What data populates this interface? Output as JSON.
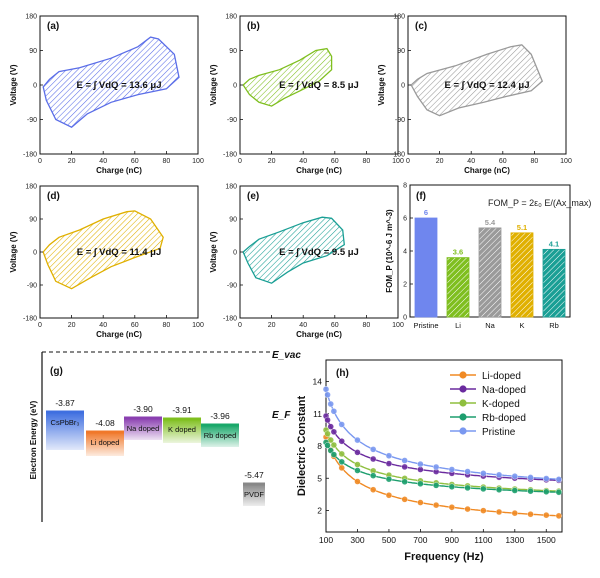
{
  "pe_loops": [
    {
      "label": "(a)",
      "dopant": "Pristine",
      "energy_text": "E = ∫ VdQ = 13.6 μJ",
      "color": "#5b6ee8",
      "xlabel": "Charge (nC)",
      "ylabel": "Voltage (V)",
      "xticks": [
        "0",
        "20",
        "40",
        "60",
        "80",
        "100"
      ],
      "yticks": [
        "180",
        "90",
        "0",
        "-90",
        "-180"
      ],
      "xlim": [
        0,
        100
      ],
      "ylim": [
        -180,
        180
      ],
      "loop": [
        [
          2,
          -5
        ],
        [
          6,
          15
        ],
        [
          12,
          35
        ],
        [
          25,
          45
        ],
        [
          45,
          70
        ],
        [
          62,
          100
        ],
        [
          70,
          125
        ],
        [
          75,
          120
        ],
        [
          85,
          80
        ],
        [
          88,
          20
        ],
        [
          80,
          -10
        ],
        [
          62,
          -25
        ],
        [
          45,
          -45
        ],
        [
          30,
          -75
        ],
        [
          20,
          -110
        ],
        [
          10,
          -90
        ],
        [
          4,
          -40
        ]
      ]
    },
    {
      "label": "(b)",
      "dopant": "Li",
      "energy_text": "E = ∫ VdQ = 8.5 μJ",
      "color": "#7fbf1f",
      "xlabel": "Charge (nC)",
      "ylabel": "Voltage (V)",
      "xticks": [
        "0",
        "20",
        "40",
        "60",
        "80",
        "100"
      ],
      "yticks": [
        "180",
        "90",
        "0",
        "-90",
        "-180"
      ],
      "xlim": [
        0,
        100
      ],
      "ylim": [
        -180,
        180
      ],
      "loop": [
        [
          2,
          0
        ],
        [
          6,
          15
        ],
        [
          12,
          25
        ],
        [
          25,
          40
        ],
        [
          38,
          65
        ],
        [
          48,
          90
        ],
        [
          55,
          95
        ],
        [
          58,
          75
        ],
        [
          58,
          40
        ],
        [
          50,
          10
        ],
        [
          38,
          -15
        ],
        [
          28,
          -35
        ],
        [
          20,
          -55
        ],
        [
          12,
          -45
        ],
        [
          6,
          -25
        ]
      ]
    },
    {
      "label": "(c)",
      "dopant": "Na",
      "energy_text": "E = ∫ VdQ = 12.4 μJ",
      "color": "#9a9a9a",
      "xlabel": "Charge (nC)",
      "ylabel": "Voltage (V)",
      "xticks": [
        "0",
        "20",
        "40",
        "60",
        "80",
        "100"
      ],
      "yticks": [
        "180",
        "90",
        "0",
        "-90",
        "-180"
      ],
      "xlim": [
        0,
        100
      ],
      "ylim": [
        -180,
        180
      ],
      "loop": [
        [
          2,
          0
        ],
        [
          6,
          15
        ],
        [
          12,
          30
        ],
        [
          30,
          50
        ],
        [
          50,
          80
        ],
        [
          65,
          100
        ],
        [
          72,
          105
        ],
        [
          78,
          80
        ],
        [
          85,
          10
        ],
        [
          78,
          -15
        ],
        [
          62,
          -30
        ],
        [
          48,
          -45
        ],
        [
          32,
          -60
        ],
        [
          20,
          -80
        ],
        [
          12,
          -65
        ],
        [
          6,
          -30
        ]
      ]
    },
    {
      "label": "(d)",
      "dopant": "K",
      "energy_text": "E = ∫ VdQ = 11.4 μJ",
      "color": "#e0b000",
      "xlabel": "Charge (nC)",
      "ylabel": "Voltage (V)",
      "xticks": [
        "0",
        "20",
        "40",
        "60",
        "80",
        "100"
      ],
      "yticks": [
        "180",
        "90",
        "0",
        "-90",
        "-180"
      ],
      "xlim": [
        0,
        100
      ],
      "ylim": [
        -180,
        180
      ],
      "loop": [
        [
          2,
          0
        ],
        [
          6,
          20
        ],
        [
          12,
          40
        ],
        [
          25,
          60
        ],
        [
          40,
          90
        ],
        [
          55,
          110
        ],
        [
          60,
          112
        ],
        [
          70,
          90
        ],
        [
          78,
          40
        ],
        [
          76,
          10
        ],
        [
          60,
          -15
        ],
        [
          45,
          -40
        ],
        [
          32,
          -70
        ],
        [
          20,
          -100
        ],
        [
          10,
          -80
        ],
        [
          5,
          -35
        ]
      ]
    },
    {
      "label": "(e)",
      "dopant": "Rb",
      "energy_text": "E = ∫ VdQ = 9.5 μJ",
      "color": "#1a9f95",
      "xlabel": "Charge (nC)",
      "ylabel": "Voltage (V)",
      "xticks": [
        "0",
        "20",
        "40",
        "60",
        "80",
        "100"
      ],
      "yticks": [
        "180",
        "90",
        "0",
        "-90",
        "-180"
      ],
      "xlim": [
        0,
        100
      ],
      "ylim": [
        -180,
        180
      ],
      "loop": [
        [
          2,
          0
        ],
        [
          6,
          15
        ],
        [
          12,
          35
        ],
        [
          25,
          55
        ],
        [
          40,
          80
        ],
        [
          52,
          95
        ],
        [
          58,
          92
        ],
        [
          65,
          60
        ],
        [
          66,
          20
        ],
        [
          55,
          -10
        ],
        [
          40,
          -30
        ],
        [
          30,
          -55
        ],
        [
          20,
          -85
        ],
        [
          10,
          -70
        ],
        [
          5,
          -30
        ]
      ]
    }
  ],
  "chart_data": [
    {
      "type": "bar",
      "label": "(f)",
      "title": "FOM_P = 2ε₀ E/(Ax_max)",
      "categories": [
        "Pristine",
        "Li",
        "Na",
        "K",
        "Rb"
      ],
      "values": [
        6,
        3.6,
        5.4,
        5.1,
        4.1
      ],
      "value_labels": [
        "6",
        "3.6",
        "5.4",
        "5.1",
        "4.1"
      ],
      "colors": [
        "#6f86ee",
        "#7fbf1f",
        "#9a9a9a",
        "#e0b000",
        "#1a9f95"
      ],
      "ylabel": "FOM_P (10^-6 J m^-3)",
      "ylim": [
        0,
        8
      ],
      "yticks": [
        "0",
        "2",
        "4",
        "6",
        "8"
      ]
    },
    {
      "type": "line",
      "label": "(h)",
      "xlabel": "Frequency (Hz)",
      "ylabel": "Dielectric Constant",
      "xlim": [
        100,
        1600
      ],
      "ylim": [
        0,
        16
      ],
      "xticks": [
        "100",
        "300",
        "500",
        "700",
        "900",
        "1100",
        "1300",
        "1500"
      ],
      "yticks": [
        "2",
        "5",
        "8",
        "11",
        "14"
      ],
      "legend": [
        "Li-doped",
        "Na-doped",
        "K-doped",
        "Rb-doped",
        "Pristine"
      ],
      "series": [
        {
          "name": "Li-doped",
          "color": "#f08a24",
          "a": 98,
          "b": 1.5
        },
        {
          "name": "Na-doped",
          "color": "#6a2a9e",
          "a": 80,
          "b": 4.8
        },
        {
          "name": "K-doped",
          "color": "#8fbf3f",
          "a": 76,
          "b": 3.8
        },
        {
          "name": "Rb-doped",
          "color": "#1d9e6e",
          "a": 62,
          "b": 3.7
        },
        {
          "name": "Pristine",
          "color": "#7a98f0",
          "a": 112,
          "b": 4.9
        }
      ]
    }
  ],
  "energy_diagram": {
    "label": "(g)",
    "ylabel": "Electron Energy (eV)",
    "vac_label": "E_vac",
    "fermi_label": "E_F",
    "levels": [
      {
        "name": "CsPbBr₃",
        "value": "-3.87",
        "color": "#3f6fe0"
      },
      {
        "name": "Li doped",
        "value": "-4.08",
        "color": "#f0782a"
      },
      {
        "name": "Na doped",
        "value": "-3.90",
        "color": "#8a3fb0"
      },
      {
        "name": "K doped",
        "value": "-3.91",
        "color": "#7fbf1f"
      },
      {
        "name": "Rb doped",
        "value": "-3.96",
        "color": "#1aa86a"
      },
      {
        "name": "PVDF",
        "value": "-5.47",
        "color": "#888888"
      }
    ]
  }
}
